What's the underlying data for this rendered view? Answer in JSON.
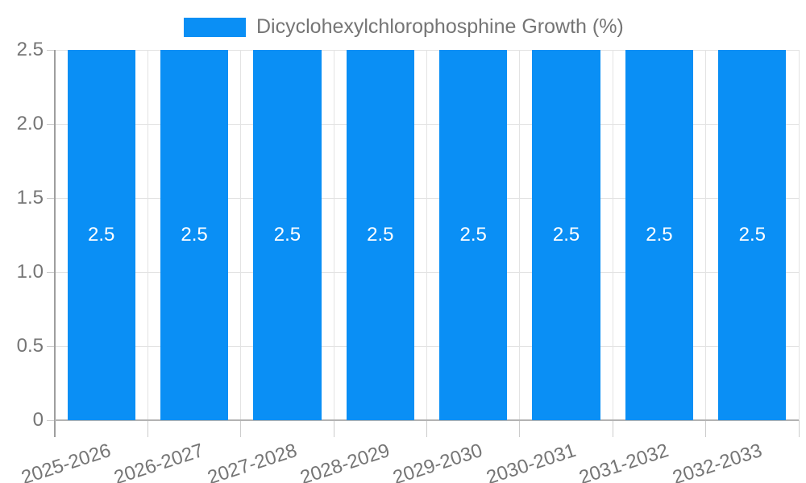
{
  "chart_data": {
    "type": "bar",
    "title": "",
    "legend": "Dicyclohexylchlorophosphine Growth (%)",
    "legend_position": "top",
    "categories": [
      "2025-2026",
      "2026-2027",
      "2027-2028",
      "2028-2029",
      "2029-2030",
      "2030-2031",
      "2031-2032",
      "2032-2033"
    ],
    "values": [
      2.5,
      2.5,
      2.5,
      2.5,
      2.5,
      2.5,
      2.5,
      2.5
    ],
    "bar_labels": [
      "2.5",
      "2.5",
      "2.5",
      "2.5",
      "2.5",
      "2.5",
      "2.5",
      "2.5"
    ],
    "xlabel": "",
    "ylabel": "",
    "ylim": [
      0,
      2.5
    ],
    "yticks": [
      {
        "value": 0,
        "label": "0"
      },
      {
        "value": 0.5,
        "label": "0.5"
      },
      {
        "value": 1.0,
        "label": "1.0"
      },
      {
        "value": 1.5,
        "label": "1.5"
      },
      {
        "value": 2.0,
        "label": "2.0"
      },
      {
        "value": 2.5,
        "label": "2.5"
      }
    ],
    "grid": true,
    "x_label_rotation_deg": -18,
    "colors": {
      "bar": "#0a8ff5",
      "bar_label": "#ffffff",
      "text": "#757575",
      "gridline": "#e3e3e3",
      "axis": "#9e9e9e",
      "baseline": "#b3b3b3",
      "tick": "#cccccc",
      "background": "#ffffff"
    }
  }
}
